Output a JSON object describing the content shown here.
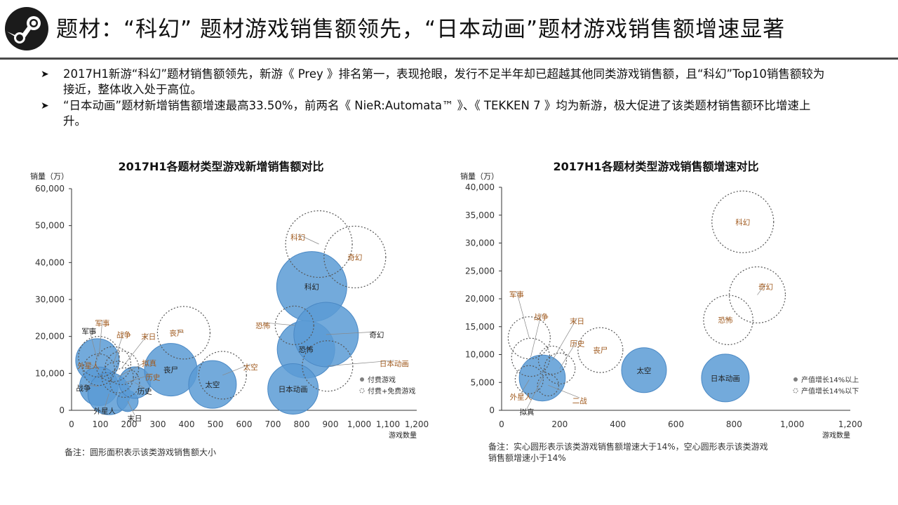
{
  "header": {
    "title": "题材：“科幻” 题材游戏销售额领先，“日本动画”题材游戏销售额增速显著",
    "logo_icon": "steam-logo-icon",
    "rule_color": "#4a4a4a"
  },
  "bullets": [
    {
      "icon": "arrow-right-icon",
      "text": "2017H1新游“科幻”题材销售额领先，新游《 Prey 》排名第一，表现抢眼，发行不足半年却已超越其他同类游戏销售额，且“科幻”Top10销售额较为接近，整体收入处于高位。"
    },
    {
      "icon": "arrow-right-icon",
      "text": " “日本动画”题材新增销售额增速最高33.50%，前两名《 NieR:Automata™ 》、《 TEKKEN 7 》均为新游，极大促进了该类题材销售额环比增速上升。"
    }
  ],
  "colors": {
    "bubble_fill": "#5b9bd5",
    "bubble_outline": "#555555",
    "label_orange": "#a05a1e",
    "label_dark": "#222222",
    "axis": "#333333"
  },
  "chart_data": [
    {
      "type": "scatter",
      "title": "2017H1各题材类型游戏新增销售额对比",
      "ylabel": "销量（万）",
      "xlabel": "游戏数量",
      "xlim": [
        0,
        1200
      ],
      "ylim": [
        0,
        60000
      ],
      "x_ticks": [
        "0",
        "100",
        "200",
        "300",
        "400",
        "500",
        "600",
        "700",
        "800",
        "900",
        "1,000",
        "1,100",
        "1,200"
      ],
      "y_ticks": [
        "0",
        "10,000",
        "20,000",
        "30,000",
        "40,000",
        "50,000",
        "60,000"
      ],
      "legend": [
        "付费游戏",
        "付费+免费游戏"
      ],
      "legend_position": "bottom-right",
      "note": "备注：圆形面积表示该类游戏销售额大小",
      "series": [
        {
          "name": "付费游戏",
          "style": "filled",
          "points": [
            {
              "label": "军事",
              "x": 90,
              "y": 13500,
              "r": 0.62,
              "labelDx": -12,
              "labelDy": -42,
              "labelColor": "dark"
            },
            {
              "label": "战争",
              "x": 95,
              "y": 6500,
              "r": 0.55,
              "labelDx": -22,
              "labelDy": 2,
              "labelColor": "dark"
            },
            {
              "label": "外星人",
              "x": 130,
              "y": 4500,
              "r": 0.6,
              "labelDx": -6,
              "labelDy": 24,
              "labelColor": "dark"
            },
            {
              "label": "末日",
              "x": 195,
              "y": 2500,
              "r": 0.3,
              "labelDx": 10,
              "labelDy": 24,
              "labelColor": "dark"
            },
            {
              "label": "历史",
              "x": 220,
              "y": 7500,
              "r": 0.45,
              "labelDx": 14,
              "labelDy": 12,
              "labelColor": "dark"
            },
            {
              "label": "丧尸",
              "x": 345,
              "y": 11000,
              "r": 0.75,
              "labelDx": 0,
              "labelDy": 0,
              "labelColor": "dark"
            },
            {
              "label": "太空",
              "x": 490,
              "y": 7000,
              "r": 0.68,
              "labelDx": 0,
              "labelDy": 0,
              "labelColor": "dark"
            },
            {
              "label": "科幻",
              "x": 835,
              "y": 33500,
              "r": 1.0,
              "labelDx": 0,
              "labelDy": 0,
              "labelColor": "dark"
            },
            {
              "label": "恐怖",
              "x": 815,
              "y": 16500,
              "r": 0.82,
              "labelDx": 0,
              "labelDy": 0,
              "labelColor": "dark"
            },
            {
              "label": "奇幻",
              "x": 885,
              "y": 20500,
              "r": 0.92,
              "labelDx": 72,
              "labelDy": 0,
              "labelColor": "dark"
            },
            {
              "label": "日本动画",
              "x": 770,
              "y": 5800,
              "r": 0.72,
              "labelDx": 0,
              "labelDy": 0,
              "labelColor": "dark"
            }
          ]
        },
        {
          "name": "付费+免费游戏",
          "style": "dotted",
          "points": [
            {
              "label": "军事",
              "x": 95,
              "y": 14500,
              "r": 0.58,
              "labelDx": 5,
              "labelDy": -48,
              "labelColor": "orange"
            },
            {
              "label": "战争",
              "x": 145,
              "y": 12500,
              "r": 0.5,
              "labelDx": 15,
              "labelDy": -42,
              "labelColor": "orange"
            },
            {
              "label": "末日",
              "x": 175,
              "y": 11500,
              "r": 0.48,
              "labelDx": 38,
              "labelDy": -45,
              "labelColor": "orange"
            },
            {
              "label": "拟真",
              "x": 160,
              "y": 9000,
              "r": 0.45,
              "labelDx": 45,
              "labelDy": -20,
              "labelColor": "orange"
            },
            {
              "label": "历史",
              "x": 185,
              "y": 7500,
              "r": 0.42,
              "labelDx": 40,
              "labelDy": -8,
              "labelColor": "orange"
            },
            {
              "label": "外星人",
              "x": 95,
              "y": 11000,
              "r": 0.45,
              "labelDx": -15,
              "labelDy": -6,
              "labelColor": "orange"
            },
            {
              "label": "丧尸",
              "x": 390,
              "y": 21000,
              "r": 0.75,
              "labelDx": -10,
              "labelDy": 0,
              "labelColor": "orange"
            },
            {
              "label": "太空",
              "x": 525,
              "y": 9500,
              "r": 0.68,
              "labelDx": 40,
              "labelDy": -12,
              "labelColor": "orange"
            },
            {
              "label": "科幻",
              "x": 860,
              "y": 45000,
              "r": 0.95,
              "labelDx": -30,
              "labelDy": -10,
              "labelColor": "orange"
            },
            {
              "label": "奇幻",
              "x": 985,
              "y": 41500,
              "r": 0.88,
              "labelDx": 0,
              "labelDy": 0,
              "labelColor": "orange"
            },
            {
              "label": "恐怖",
              "x": 775,
              "y": 23000,
              "r": 0.55,
              "labelDx": -45,
              "labelDy": 0,
              "labelColor": "orange"
            },
            {
              "label": "日本动画",
              "x": 890,
              "y": 12000,
              "r": 0.72,
              "labelDx": 95,
              "labelDy": -4,
              "labelColor": "orange"
            }
          ]
        }
      ]
    },
    {
      "type": "scatter",
      "title": "2017H1各题材类型游戏销售额增速对比",
      "ylabel": "销量（万）",
      "xlabel": "游戏数量",
      "xlim": [
        0,
        1200
      ],
      "ylim": [
        0,
        40000
      ],
      "x_ticks": [
        "0",
        "200",
        "400",
        "600",
        "800",
        "1,000",
        "1,200"
      ],
      "y_ticks": [
        "0",
        "5,000",
        "10,000",
        "15,000",
        "20,000",
        "25,000",
        "30,000",
        "35,000",
        "40,000"
      ],
      "legend": [
        "产值增长14%以上",
        "产值增长14%以下"
      ],
      "legend_position": "bottom-right",
      "note": "备注：实心圆形表示该类游戏销售额增速大于14%，空心圆形表示该类游戏销售额增速小于14%",
      "series": [
        {
          "name": "产值增长14%以上",
          "style": "filled",
          "points": [
            {
              "label": "拟真",
              "x": 140,
              "y": 5800,
              "r": 0.82,
              "labelDx": -22,
              "labelDy": 48,
              "labelColor": "dark"
            },
            {
              "label": "太空",
              "x": 490,
              "y": 7200,
              "r": 0.8,
              "labelDx": 0,
              "labelDy": 0,
              "labelColor": "dark"
            },
            {
              "label": "日本动画",
              "x": 770,
              "y": 5800,
              "r": 0.85,
              "labelDx": 0,
              "labelDy": 0,
              "labelColor": "dark"
            }
          ]
        },
        {
          "name": "产值增长14%以下",
          "style": "dotted",
          "points": [
            {
              "label": "军事",
              "x": 95,
              "y": 13000,
              "r": 0.75,
              "labelDx": -18,
              "labelDy": -62,
              "labelColor": "orange"
            },
            {
              "label": "战争",
              "x": 100,
              "y": 9500,
              "r": 0.68,
              "labelDx": 15,
              "labelDy": -58,
              "labelColor": "orange"
            },
            {
              "label": "末日",
              "x": 175,
              "y": 9000,
              "r": 0.5,
              "labelDx": 35,
              "labelDy": -56,
              "labelColor": "orange"
            },
            {
              "label": "历史",
              "x": 200,
              "y": 7500,
              "r": 0.55,
              "labelDx": 25,
              "labelDy": -36,
              "labelColor": "orange"
            },
            {
              "label": "外星人",
              "x": 95,
              "y": 5500,
              "r": 0.5,
              "labelDx": -12,
              "labelDy": 24,
              "labelColor": "orange"
            },
            {
              "label": "二战",
              "x": 160,
              "y": 4500,
              "r": 0.38,
              "labelDx": 45,
              "labelDy": 22,
              "labelColor": "orange"
            },
            {
              "label": "丧尸",
              "x": 340,
              "y": 10800,
              "r": 0.8,
              "labelDx": 0,
              "labelDy": 0,
              "labelColor": "orange"
            },
            {
              "label": "科幻",
              "x": 830,
              "y": 33800,
              "r": 1.1,
              "labelDx": 0,
              "labelDy": 0,
              "labelColor": "orange"
            },
            {
              "label": "奇幻",
              "x": 880,
              "y": 20700,
              "r": 1.0,
              "labelDx": 12,
              "labelDy": -12,
              "labelColor": "orange"
            },
            {
              "label": "恐怖",
              "x": 780,
              "y": 16200,
              "r": 0.88,
              "labelDx": -4,
              "labelDy": 0,
              "labelColor": "orange"
            }
          ]
        }
      ]
    }
  ]
}
